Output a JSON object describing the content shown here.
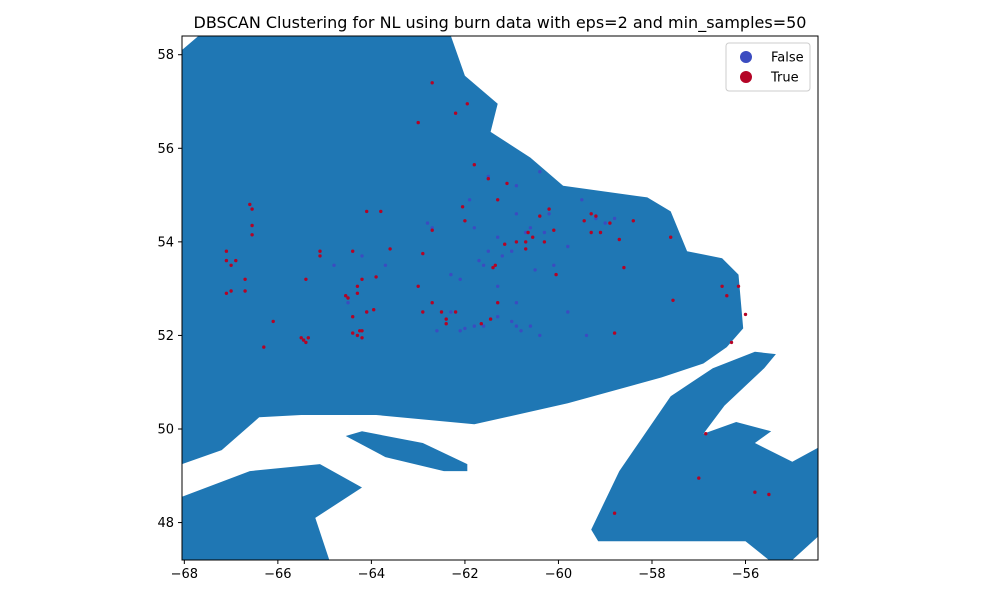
{
  "chart_data": {
    "type": "scatter",
    "title": "DBSCAN Clustering for NL using burn data with eps=2 and min_samples=50",
    "xlabel": "",
    "ylabel": "",
    "xlim": [
      -68.05,
      -54.45
    ],
    "ylim": [
      47.2,
      58.4
    ],
    "x_ticks": [
      -68,
      -66,
      -64,
      -62,
      -60,
      -58,
      -56
    ],
    "y_ticks": [
      48,
      50,
      52,
      54,
      56,
      58
    ],
    "grid": false,
    "legend_position": "top-right",
    "land_color": "#1f77b4",
    "land_regions": [
      {
        "name": "labrador-mainland",
        "coords": [
          [
            -68.05,
            49.25
          ],
          [
            -67.2,
            49.55
          ],
          [
            -66.4,
            50.25
          ],
          [
            -65.5,
            50.3
          ],
          [
            -63.9,
            50.3
          ],
          [
            -61.8,
            50.1
          ],
          [
            -59.8,
            50.55
          ],
          [
            -57.8,
            51.1
          ],
          [
            -56.9,
            51.4
          ],
          [
            -56.4,
            51.75
          ],
          [
            -56.05,
            52.15
          ],
          [
            -56.15,
            53.3
          ],
          [
            -56.5,
            53.65
          ],
          [
            -57.25,
            53.8
          ],
          [
            -57.6,
            54.65
          ],
          [
            -58.1,
            54.95
          ],
          [
            -59.9,
            55.2
          ],
          [
            -60.6,
            55.8
          ],
          [
            -61.45,
            56.35
          ],
          [
            -61.3,
            56.95
          ],
          [
            -62.0,
            57.55
          ],
          [
            -62.3,
            58.4
          ],
          [
            -67.7,
            58.4
          ],
          [
            -68.05,
            58.1
          ]
        ]
      },
      {
        "name": "island-strip",
        "coords": [
          [
            -64.55,
            49.85
          ],
          [
            -64.2,
            49.95
          ],
          [
            -62.9,
            49.7
          ],
          [
            -61.95,
            49.25
          ],
          [
            -61.95,
            49.1
          ],
          [
            -62.45,
            49.1
          ],
          [
            -63.7,
            49.4
          ]
        ]
      },
      {
        "name": "peninsula-southwest",
        "coords": [
          [
            -68.05,
            48.55
          ],
          [
            -66.6,
            49.1
          ],
          [
            -65.1,
            49.25
          ],
          [
            -64.2,
            48.75
          ],
          [
            -65.2,
            48.1
          ],
          [
            -64.9,
            47.2
          ],
          [
            -68.05,
            47.2
          ]
        ]
      },
      {
        "name": "newfoundland-northern-peninsula",
        "coords": [
          [
            -59.3,
            47.85
          ],
          [
            -58.7,
            49.1
          ],
          [
            -57.6,
            50.7
          ],
          [
            -56.7,
            51.3
          ],
          [
            -55.8,
            51.65
          ],
          [
            -55.35,
            51.6
          ],
          [
            -55.6,
            51.3
          ],
          [
            -56.45,
            50.5
          ],
          [
            -56.9,
            49.9
          ],
          [
            -56.2,
            50.15
          ],
          [
            -55.45,
            49.95
          ],
          [
            -55.8,
            49.7
          ],
          [
            -55.0,
            49.3
          ],
          [
            -54.45,
            49.6
          ],
          [
            -54.45,
            47.7
          ],
          [
            -55.0,
            47.2
          ],
          [
            -55.5,
            47.2
          ],
          [
            -56.0,
            47.6
          ],
          [
            -57.5,
            47.6
          ],
          [
            -59.15,
            47.6
          ]
        ]
      }
    ],
    "series": [
      {
        "name": "False",
        "color": "#3b4cc0",
        "points": [
          [
            -64.8,
            53.5
          ],
          [
            -64.5,
            52.7
          ],
          [
            -64.2,
            53.7
          ],
          [
            -64.1,
            52.5
          ],
          [
            -63.7,
            53.5
          ],
          [
            -62.8,
            54.4
          ],
          [
            -62.7,
            54.3
          ],
          [
            -62.3,
            53.3
          ],
          [
            -62.1,
            53.2
          ],
          [
            -61.9,
            54.9
          ],
          [
            -61.8,
            54.3
          ],
          [
            -61.7,
            53.6
          ],
          [
            -61.6,
            53.5
          ],
          [
            -61.5,
            55.4
          ],
          [
            -61.5,
            53.8
          ],
          [
            -61.3,
            54.1
          ],
          [
            -61.2,
            53.7
          ],
          [
            -61.0,
            53.8
          ],
          [
            -60.9,
            54.6
          ],
          [
            -60.9,
            55.2
          ],
          [
            -60.7,
            54.2
          ],
          [
            -60.6,
            54.3
          ],
          [
            -60.5,
            53.4
          ],
          [
            -60.4,
            55.5
          ],
          [
            -60.3,
            54.2
          ],
          [
            -60.2,
            54.6
          ],
          [
            -60.1,
            53.5
          ],
          [
            -59.8,
            53.9
          ],
          [
            -59.5,
            54.9
          ],
          [
            -59.2,
            54.5
          ],
          [
            -59.0,
            54.4
          ],
          [
            -58.8,
            54.5
          ],
          [
            -62.3,
            52.5
          ],
          [
            -62.6,
            52.1
          ],
          [
            -62.1,
            52.1
          ],
          [
            -61.8,
            52.2
          ],
          [
            -61.3,
            52.4
          ],
          [
            -61.0,
            52.3
          ],
          [
            -60.9,
            52.7
          ],
          [
            -60.8,
            52.1
          ],
          [
            -60.6,
            52.2
          ],
          [
            -60.4,
            52.0
          ],
          [
            -59.8,
            52.5
          ],
          [
            -59.4,
            52.0
          ],
          [
            -60.9,
            52.2
          ],
          [
            -61.6,
            52.2
          ],
          [
            -62.0,
            52.15
          ],
          [
            -61.3,
            53.05
          ]
        ]
      },
      {
        "name": "True",
        "color": "#b40426",
        "points": [
          [
            -67.1,
            53.8
          ],
          [
            -67.0,
            53.5
          ],
          [
            -66.9,
            53.6
          ],
          [
            -67.1,
            52.9
          ],
          [
            -67.0,
            52.95
          ],
          [
            -66.7,
            53.2
          ],
          [
            -66.7,
            52.95
          ],
          [
            -66.6,
            54.8
          ],
          [
            -66.55,
            54.7
          ],
          [
            -66.55,
            54.35
          ],
          [
            -66.55,
            54.15
          ],
          [
            -67.1,
            53.6
          ],
          [
            -66.1,
            52.3
          ],
          [
            -66.3,
            51.75
          ],
          [
            -65.5,
            51.95
          ],
          [
            -65.4,
            51.85
          ],
          [
            -65.45,
            51.9
          ],
          [
            -65.35,
            51.95
          ],
          [
            -65.1,
            53.8
          ],
          [
            -65.1,
            53.7
          ],
          [
            -65.4,
            53.2
          ],
          [
            -64.55,
            52.85
          ],
          [
            -64.5,
            52.8
          ],
          [
            -64.4,
            53.8
          ],
          [
            -64.4,
            52.4
          ],
          [
            -64.3,
            52.9
          ],
          [
            -64.3,
            53.05
          ],
          [
            -64.25,
            52.1
          ],
          [
            -64.2,
            52.1
          ],
          [
            -64.2,
            53.2
          ],
          [
            -64.4,
            52.05
          ],
          [
            -64.3,
            52.0
          ],
          [
            -64.1,
            52.5
          ],
          [
            -64.2,
            51.95
          ],
          [
            -64.1,
            54.65
          ],
          [
            -63.95,
            52.55
          ],
          [
            -63.9,
            53.25
          ],
          [
            -63.8,
            54.65
          ],
          [
            -63.6,
            53.85
          ],
          [
            -63.0,
            53.05
          ],
          [
            -62.9,
            53.75
          ],
          [
            -62.9,
            52.5
          ],
          [
            -62.7,
            54.25
          ],
          [
            -62.7,
            52.7
          ],
          [
            -62.5,
            52.5
          ],
          [
            -62.4,
            52.35
          ],
          [
            -62.4,
            52.25
          ],
          [
            -62.2,
            52.5
          ],
          [
            -62.05,
            54.75
          ],
          [
            -62.0,
            54.45
          ],
          [
            -61.65,
            52.25
          ],
          [
            -61.5,
            55.35
          ],
          [
            -61.45,
            52.35
          ],
          [
            -61.4,
            53.45
          ],
          [
            -61.35,
            53.5
          ],
          [
            -61.3,
            54.9
          ],
          [
            -61.3,
            52.7
          ],
          [
            -61.15,
            53.95
          ],
          [
            -61.1,
            55.25
          ],
          [
            -60.9,
            54.0
          ],
          [
            -60.7,
            54.0
          ],
          [
            -60.7,
            53.85
          ],
          [
            -60.65,
            54.2
          ],
          [
            -60.55,
            54.1
          ],
          [
            -60.4,
            54.55
          ],
          [
            -60.3,
            54.0
          ],
          [
            -60.2,
            54.7
          ],
          [
            -60.1,
            54.25
          ],
          [
            -60.05,
            53.3
          ],
          [
            -59.45,
            54.45
          ],
          [
            -59.3,
            54.6
          ],
          [
            -59.3,
            54.2
          ],
          [
            -59.2,
            54.55
          ],
          [
            -59.1,
            54.2
          ],
          [
            -58.9,
            54.4
          ],
          [
            -58.7,
            54.05
          ],
          [
            -58.6,
            53.45
          ],
          [
            -58.4,
            54.45
          ],
          [
            -58.8,
            52.05
          ],
          [
            -57.6,
            54.1
          ],
          [
            -57.55,
            52.75
          ],
          [
            -56.5,
            53.05
          ],
          [
            -56.4,
            52.85
          ],
          [
            -56.15,
            53.05
          ],
          [
            -56.0,
            52.45
          ],
          [
            -56.3,
            51.85
          ],
          [
            -56.85,
            49.9
          ],
          [
            -57.0,
            48.95
          ],
          [
            -58.8,
            48.2
          ],
          [
            -55.8,
            48.65
          ],
          [
            -55.5,
            48.6
          ],
          [
            -63.0,
            56.55
          ],
          [
            -62.7,
            57.4
          ],
          [
            -62.2,
            56.75
          ],
          [
            -61.95,
            56.95
          ],
          [
            -61.8,
            55.65
          ]
        ]
      }
    ]
  }
}
